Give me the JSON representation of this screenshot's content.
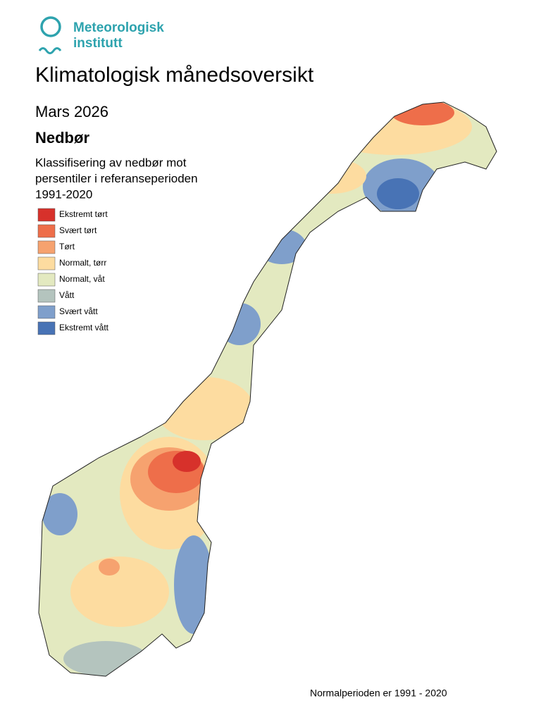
{
  "logo": {
    "line1": "Meteorologisk",
    "line2": "institutt"
  },
  "header": {
    "title": "Klimatologisk månedsoversikt",
    "period": "Mars 2026",
    "variable": "Nedbør",
    "subtitle": [
      "Klassifisering av nedbør mot",
      "persentiler i referanseperioden",
      "1991-2020"
    ]
  },
  "legend": [
    {
      "label": "Ekstremt tørt",
      "color": "#d7312b"
    },
    {
      "label": "Svært tørt",
      "color": "#ee6e4a"
    },
    {
      "label": "Tørt",
      "color": "#f6a26f"
    },
    {
      "label": "Normalt, tørr",
      "color": "#fddca0"
    },
    {
      "label": "Normalt, våt",
      "color": "#e3e9c0"
    },
    {
      "label": "Vått",
      "color": "#b4c4be"
    },
    {
      "label": "Svært vått",
      "color": "#7f9fcb"
    },
    {
      "label": "Ekstremt vått",
      "color": "#4873b5"
    }
  ],
  "footnote": "Normalperioden er 1991 - 2020"
}
